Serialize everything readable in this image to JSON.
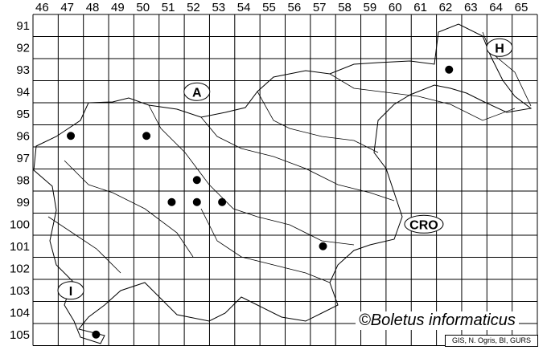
{
  "map": {
    "columns": [
      "46",
      "47",
      "48",
      "49",
      "50",
      "51",
      "52",
      "53",
      "54",
      "55",
      "56",
      "57",
      "58",
      "59",
      "60",
      "61",
      "62",
      "63",
      "64",
      "65"
    ],
    "rows": [
      "91",
      "92",
      "93",
      "94",
      "95",
      "96",
      "97",
      "98",
      "99",
      "100",
      "101",
      "102",
      "103",
      "104",
      "105"
    ],
    "country_labels": [
      {
        "text": "A",
        "col": "52",
        "row": "94"
      },
      {
        "text": "H",
        "col": "64",
        "row": "92"
      },
      {
        "text": "CRO",
        "col": "61",
        "row": "100"
      },
      {
        "text": "I",
        "col": "47",
        "row": "103"
      }
    ],
    "records": [
      {
        "col": "62",
        "row": "93"
      },
      {
        "col": "47",
        "row": "96"
      },
      {
        "col": "50",
        "row": "96"
      },
      {
        "col": "52",
        "row": "98"
      },
      {
        "col": "52",
        "row": "99"
      },
      {
        "col": "51",
        "row": "99"
      },
      {
        "col": "53",
        "row": "99"
      },
      {
        "col": "57",
        "row": "101"
      },
      {
        "col": "48",
        "row": "105"
      }
    ],
    "marker_color": "#000000"
  },
  "copyright": "©Boletus informaticus",
  "source": "GIS, N. Ogris, BI, GURS"
}
